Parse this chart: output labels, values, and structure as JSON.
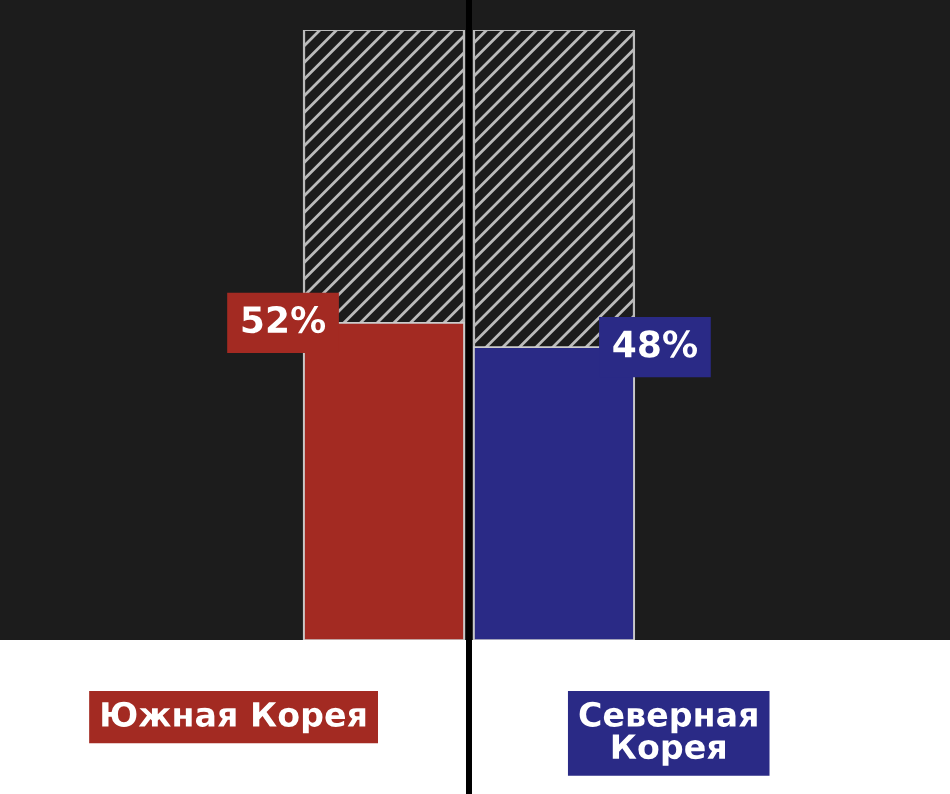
{
  "chart_data": {
    "type": "bar",
    "categories": [
      "Южная Корея",
      "Северная Корея"
    ],
    "values": [
      52,
      48
    ],
    "colors": [
      "#a32a22",
      "#2a2a86"
    ],
    "value_labels": [
      "52%",
      "48%"
    ],
    "tick_labels": "x"
  }
}
